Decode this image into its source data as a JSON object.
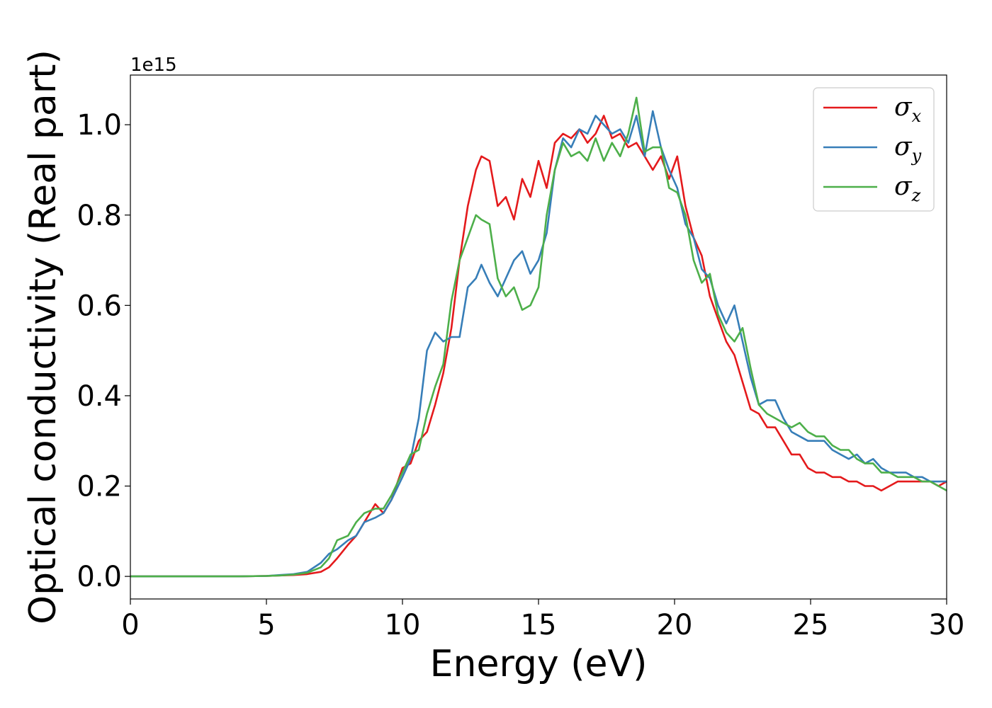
{
  "chart_data": {
    "type": "line",
    "title": "",
    "xlabel": "Energy (eV)",
    "ylabel": "Optical conductivity (Real part)",
    "y_offset_label": "1e15",
    "xlim": [
      0,
      30
    ],
    "ylim": [
      -0.05,
      1.11
    ],
    "x_ticks": [
      0,
      5,
      10,
      15,
      20,
      25,
      30
    ],
    "x_tick_labels": [
      "0",
      "5",
      "10",
      "15",
      "20",
      "25",
      "30"
    ],
    "y_ticks": [
      0.0,
      0.2,
      0.4,
      0.6,
      0.8,
      1.0
    ],
    "y_tick_labels": [
      "0.0",
      "0.2",
      "0.4",
      "0.6",
      "0.8",
      "1.0"
    ],
    "grid": false,
    "legend_position": "top-right",
    "x": [
      0,
      1,
      2,
      3,
      4,
      5,
      5.5,
      6,
      6.5,
      7,
      7.3,
      7.6,
      8,
      8.3,
      8.6,
      9,
      9.3,
      9.6,
      10,
      10.3,
      10.6,
      10.9,
      11.2,
      11.5,
      11.8,
      12.1,
      12.4,
      12.7,
      12.9,
      13.2,
      13.5,
      13.8,
      14.1,
      14.4,
      14.7,
      15,
      15.3,
      15.6,
      15.9,
      16.2,
      16.5,
      16.8,
      17.1,
      17.4,
      17.7,
      18,
      18.3,
      18.6,
      18.9,
      19.2,
      19.5,
      19.8,
      20.1,
      20.4,
      20.7,
      21,
      21.3,
      21.6,
      21.9,
      22.2,
      22.5,
      22.8,
      23.1,
      23.4,
      23.7,
      24,
      24.3,
      24.6,
      24.9,
      25.2,
      25.5,
      25.8,
      26.1,
      26.4,
      26.7,
      27,
      27.3,
      27.6,
      27.9,
      28.2,
      28.5,
      28.8,
      29.1,
      29.4,
      29.7,
      30
    ],
    "series": [
      {
        "name": "σ",
        "subscript": "x",
        "color": "#e41a1c",
        "values": [
          0,
          0,
          0,
          0,
          0,
          0.001,
          0.002,
          0.003,
          0.005,
          0.01,
          0.02,
          0.04,
          0.07,
          0.09,
          0.12,
          0.16,
          0.14,
          0.17,
          0.24,
          0.25,
          0.3,
          0.32,
          0.38,
          0.45,
          0.55,
          0.7,
          0.82,
          0.9,
          0.93,
          0.92,
          0.82,
          0.84,
          0.79,
          0.88,
          0.84,
          0.92,
          0.86,
          0.96,
          0.98,
          0.97,
          0.99,
          0.96,
          0.98,
          1.02,
          0.97,
          0.98,
          0.95,
          0.96,
          0.93,
          0.9,
          0.93,
          0.88,
          0.93,
          0.82,
          0.75,
          0.71,
          0.62,
          0.57,
          0.52,
          0.49,
          0.43,
          0.37,
          0.36,
          0.33,
          0.33,
          0.3,
          0.27,
          0.27,
          0.24,
          0.23,
          0.23,
          0.22,
          0.22,
          0.21,
          0.21,
          0.2,
          0.2,
          0.19,
          0.2,
          0.21,
          0.21,
          0.21,
          0.21,
          0.21,
          0.2,
          0.21
        ]
      },
      {
        "name": "σ",
        "subscript": "y",
        "color": "#377eb8",
        "values": [
          0,
          0,
          0,
          0,
          0,
          0.001,
          0.003,
          0.005,
          0.01,
          0.03,
          0.05,
          0.06,
          0.08,
          0.09,
          0.12,
          0.13,
          0.14,
          0.17,
          0.22,
          0.26,
          0.35,
          0.5,
          0.54,
          0.52,
          0.53,
          0.53,
          0.64,
          0.66,
          0.69,
          0.65,
          0.62,
          0.66,
          0.7,
          0.72,
          0.67,
          0.7,
          0.76,
          0.9,
          0.97,
          0.95,
          0.99,
          0.98,
          1.02,
          1.0,
          0.98,
          0.99,
          0.96,
          1.02,
          0.93,
          1.03,
          0.95,
          0.9,
          0.86,
          0.78,
          0.75,
          0.68,
          0.66,
          0.6,
          0.56,
          0.6,
          0.52,
          0.44,
          0.38,
          0.39,
          0.39,
          0.35,
          0.32,
          0.31,
          0.3,
          0.3,
          0.3,
          0.28,
          0.27,
          0.26,
          0.27,
          0.25,
          0.26,
          0.24,
          0.23,
          0.23,
          0.23,
          0.22,
          0.22,
          0.21,
          0.21,
          0.21
        ]
      },
      {
        "name": "σ",
        "subscript": "z",
        "color": "#4daf4a",
        "values": [
          0,
          0,
          0,
          0,
          0,
          0.001,
          0.002,
          0.004,
          0.008,
          0.02,
          0.04,
          0.08,
          0.09,
          0.12,
          0.14,
          0.15,
          0.15,
          0.18,
          0.23,
          0.27,
          0.28,
          0.36,
          0.42,
          0.47,
          0.61,
          0.7,
          0.75,
          0.8,
          0.79,
          0.78,
          0.66,
          0.62,
          0.64,
          0.59,
          0.6,
          0.64,
          0.8,
          0.9,
          0.96,
          0.93,
          0.94,
          0.92,
          0.97,
          0.92,
          0.96,
          0.93,
          0.98,
          1.06,
          0.94,
          0.95,
          0.95,
          0.86,
          0.85,
          0.8,
          0.7,
          0.65,
          0.67,
          0.58,
          0.54,
          0.52,
          0.55,
          0.46,
          0.38,
          0.36,
          0.35,
          0.34,
          0.33,
          0.34,
          0.32,
          0.31,
          0.31,
          0.29,
          0.28,
          0.28,
          0.26,
          0.25,
          0.25,
          0.23,
          0.23,
          0.22,
          0.22,
          0.22,
          0.21,
          0.21,
          0.2,
          0.19
        ]
      }
    ]
  }
}
